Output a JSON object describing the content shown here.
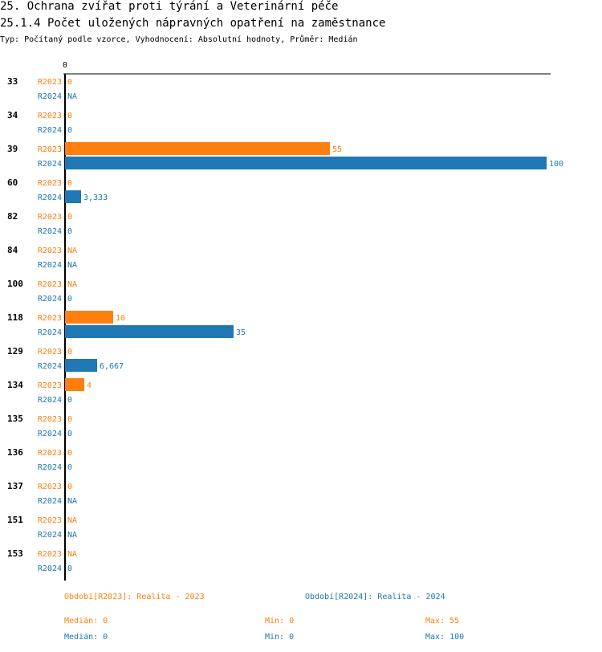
{
  "header": {
    "title": "25. Ochrana zvířat proti týrání a Veterinární péče",
    "subtitle": "25.1.4 Počet uložených nápravných opatření na zaměstnance",
    "meta": "Typ: Počítaný podle vzorce, Vyhodnocení: Absolutní hodnoty, Průměr: Medián"
  },
  "chart_data": {
    "type": "bar",
    "orientation": "horizontal",
    "axis_label": "0",
    "xlim": [
      0,
      100
    ],
    "categories": [
      "33",
      "34",
      "39",
      "60",
      "82",
      "84",
      "100",
      "118",
      "129",
      "134",
      "135",
      "136",
      "137",
      "151",
      "153"
    ],
    "series": [
      {
        "name": "R2023",
        "color": "#ff7f0e",
        "values": [
          0,
          0,
          55,
          0,
          0,
          null,
          null,
          10,
          0,
          4,
          0,
          0,
          0,
          null,
          null
        ],
        "labels": [
          "0",
          "0",
          "55",
          "0",
          "0",
          "NA",
          "NA",
          "10",
          "0",
          "4",
          "0",
          "0",
          "0",
          "NA",
          "NA"
        ]
      },
      {
        "name": "R2024",
        "color": "#1f77b4",
        "values": [
          null,
          0,
          100,
          3.333,
          0,
          null,
          0,
          35,
          6.667,
          0,
          0,
          0,
          null,
          null,
          0
        ],
        "labels": [
          "NA",
          "0",
          "100",
          "3,333",
          "0",
          "NA",
          "0",
          "35",
          "6,667",
          "0",
          "0",
          "0",
          "NA",
          "NA",
          "0"
        ]
      }
    ]
  },
  "legend": {
    "r2023": "Období[R2023]: Realita - 2023",
    "r2024": "Období[R2024]: Realita - 2024"
  },
  "stats": {
    "r2023": {
      "median": "Medián: 0",
      "min": "Min: 0",
      "max": "Max: 55"
    },
    "r2024": {
      "median": "Medián: 0",
      "min": "Min: 0",
      "max": "Max: 100"
    }
  }
}
